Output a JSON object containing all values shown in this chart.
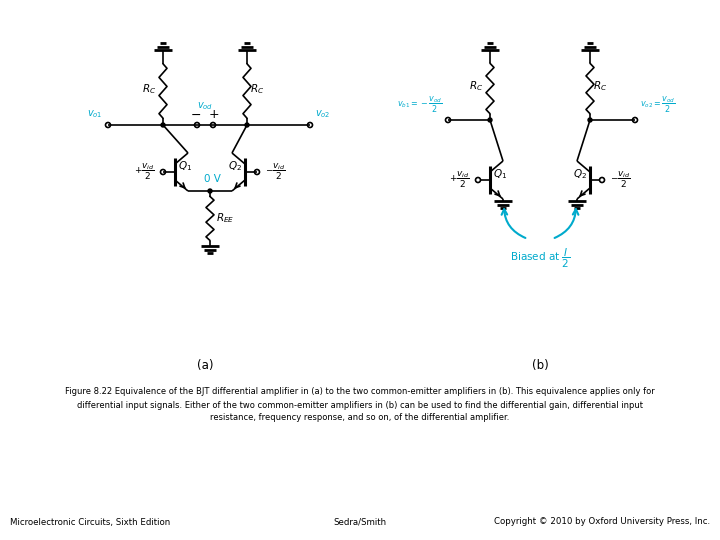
{
  "bg_color": "#ffffff",
  "fig_width": 7.2,
  "fig_height": 5.4,
  "caption_line1": "Figure 8.22 Equivalence of the BJT differential amplifier in (a) to the two common-emitter amplifiers in (b). This equivalence applies only for",
  "caption_line2": "differential input signals. Either of the two common-emitter amplifiers in (b) can be used to find the differential gain, differential input",
  "caption_line3": "resistance, frequency response, and so on, of the differential amplifier.",
  "footer_left": "Microelectronic Circuits, Sixth Edition",
  "footer_center": "Sedra/Smith",
  "footer_right": "Copyright © 2010 by Oxford University Press, Inc.",
  "label_a": "(a)",
  "label_b": "(b)",
  "cyan_color": "#00AACC",
  "black_color": "#000000",
  "line_width": 1.2
}
